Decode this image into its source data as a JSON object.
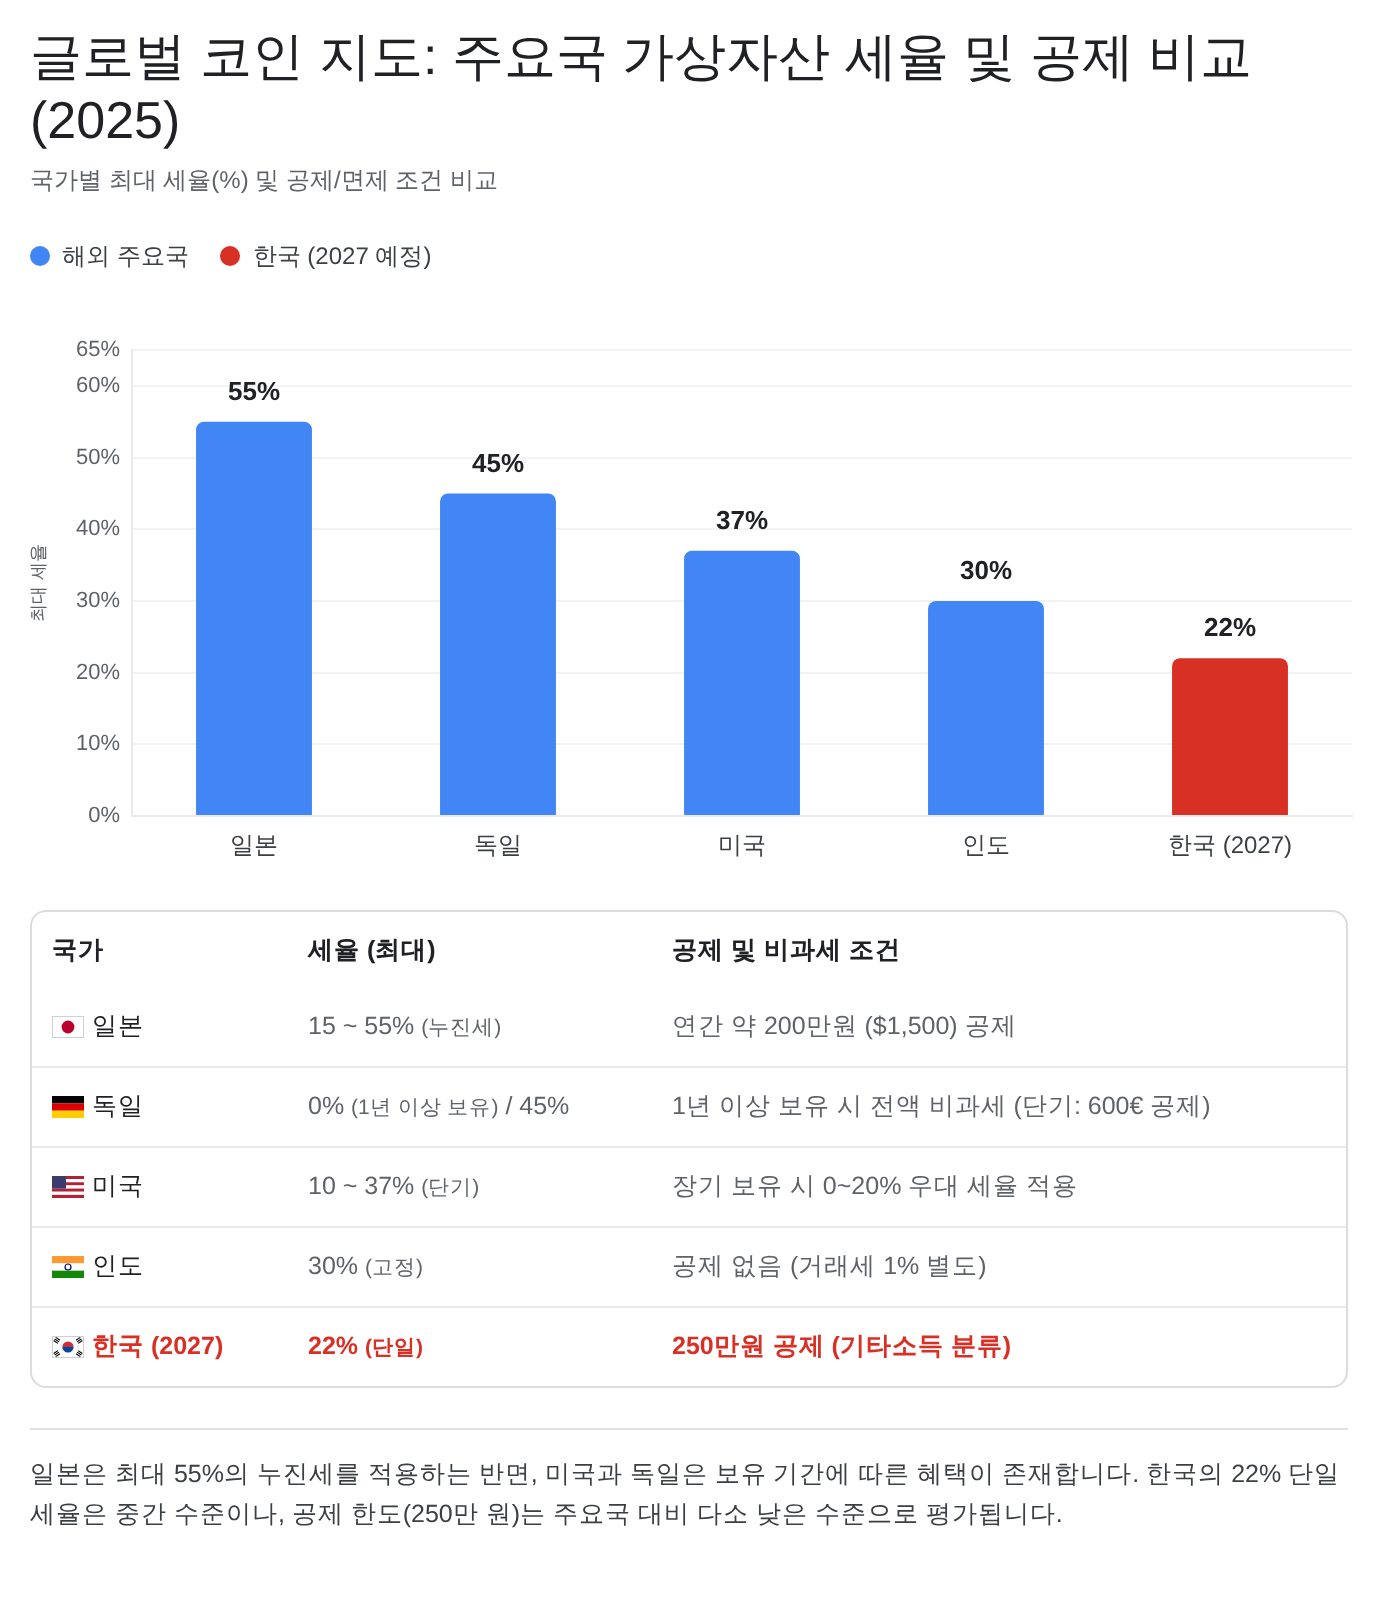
{
  "chart_data": [
    {
      "type": "bar",
      "title": "글로벌 코인 지도: 주요국 가상자산 세율 및 공제 비교 (2025)",
      "subtitle": "국가별 최대 세율(%) 및 공제/면제 조건 비교",
      "ylabel": "최대 세율",
      "categories": [
        "일본",
        "독일",
        "미국",
        "인도",
        "한국 (2027)"
      ],
      "series": [
        {
          "name": "해외 주요국",
          "color": "#4285f4",
          "values": [
            55,
            45,
            37,
            30,
            null
          ],
          "value_labels": [
            "55%",
            "45%",
            "37%",
            "30%",
            null
          ]
        },
        {
          "name": "한국 (2027 예정)",
          "color": "#d93025",
          "values": [
            null,
            null,
            null,
            null,
            22
          ],
          "value_labels": [
            null,
            null,
            null,
            null,
            "22%"
          ]
        }
      ],
      "ylim": [
        0,
        65
      ],
      "yticks": [
        {
          "value": 0,
          "label": "0%"
        },
        {
          "value": 10,
          "label": "10%"
        },
        {
          "value": 20,
          "label": "20%"
        },
        {
          "value": 30,
          "label": "30%"
        },
        {
          "value": 40,
          "label": "40%"
        },
        {
          "value": 50,
          "label": "50%"
        },
        {
          "value": 60,
          "label": "60%"
        },
        {
          "value": 65,
          "label": "65%"
        }
      ],
      "grid": "y",
      "legend": "top left"
    },
    {
      "type": "other",
      "categories": [
        "국가",
        "세율 (최대)",
        "공제 및 비과세 조건"
      ],
      "cell_labels": [
        [
          "일본",
          "15 ~ 55% (누진세)",
          "연간 약 200만원 ($1,500) 공제"
        ],
        [
          "독일",
          "0% (1년 이상 보유) / 45%",
          "1년 이상 보유 시 전액 비과세 (단기: 600€ 공제)"
        ],
        [
          "미국",
          "10 ~ 37% (단기)",
          "장기 보유 시 0~20% 우대 세율 적용"
        ],
        [
          "인도",
          "30% (고정)",
          "공제 없음 (거래세 1% 별도)"
        ],
        [
          "한국 (2027)",
          "22% (단일)",
          "250만원 공제 (기타소득 분류)"
        ]
      ],
      "colors": [
        "#5f6368",
        "#5f6368",
        "#5f6368",
        "#5f6368",
        "#d93025"
      ],
      "annotations": [
        "일본은 최대 55%의 누진세를 적용하는 반면, 미국과 독일은 보유 기간에 따른 혜택이 존재합니다. 한국의 22% 단일 세율은 중간 수준이나, 공제 한도(250만 원)는 주요국 대비 다소 낮은 수준으로 평가됩니다."
      ]
    }
  ]
}
